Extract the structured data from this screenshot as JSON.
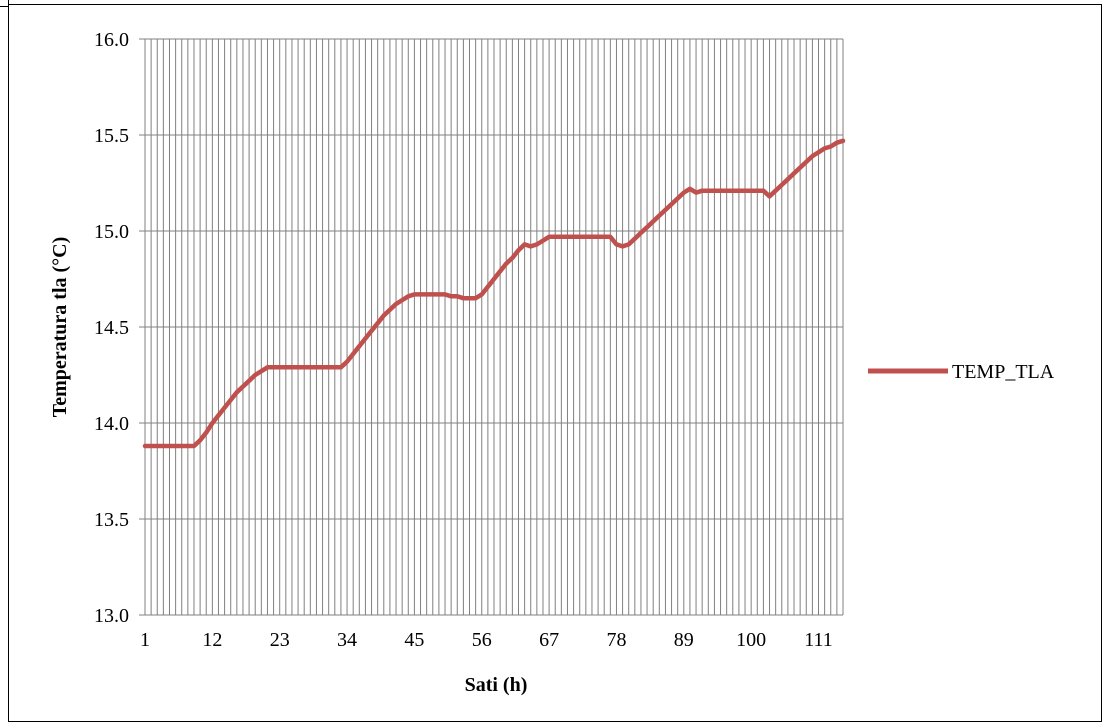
{
  "chart_data": {
    "type": "line",
    "title": "",
    "xlabel": "Sati (h)",
    "ylabel": "Temperatura tla (°C)",
    "ylim": [
      13.0,
      16.0
    ],
    "xlim": [
      1,
      115
    ],
    "y_ticks": [
      "13.0",
      "13.5",
      "14.0",
      "14.5",
      "15.0",
      "15.5",
      "16.0"
    ],
    "x_ticks": [
      "1",
      "12",
      "23",
      "34",
      "45",
      "56",
      "67",
      "78",
      "89",
      "100",
      "111"
    ],
    "grid": "vertical gridlines every hour, horizontal gridlines every 0.5",
    "legend_position": "right",
    "colors": {
      "series": "#C0504D",
      "grid": "#808080"
    },
    "series": [
      {
        "name": "TEMP_TLA",
        "x": [
          1,
          2,
          3,
          4,
          5,
          6,
          7,
          8,
          9,
          10,
          11,
          12,
          13,
          14,
          15,
          16,
          17,
          18,
          19,
          20,
          21,
          22,
          23,
          24,
          25,
          26,
          27,
          28,
          29,
          30,
          31,
          32,
          33,
          34,
          35,
          36,
          37,
          38,
          39,
          40,
          41,
          42,
          43,
          44,
          45,
          46,
          47,
          48,
          49,
          50,
          51,
          52,
          53,
          54,
          55,
          56,
          57,
          58,
          59,
          60,
          61,
          62,
          63,
          64,
          65,
          66,
          67,
          68,
          69,
          70,
          71,
          72,
          73,
          74,
          75,
          76,
          77,
          78,
          79,
          80,
          81,
          82,
          83,
          84,
          85,
          86,
          87,
          88,
          89,
          90,
          91,
          92,
          93,
          94,
          95,
          96,
          97,
          98,
          99,
          100,
          101,
          102,
          103,
          104,
          105,
          106,
          107,
          108,
          109,
          110,
          111,
          112,
          113,
          114,
          115
        ],
        "values": [
          13.88,
          13.88,
          13.88,
          13.88,
          13.88,
          13.88,
          13.88,
          13.88,
          13.88,
          13.91,
          13.95,
          14.0,
          14.04,
          14.08,
          14.12,
          14.16,
          14.19,
          14.22,
          14.25,
          14.27,
          14.29,
          14.29,
          14.29,
          14.29,
          14.29,
          14.29,
          14.29,
          14.29,
          14.29,
          14.29,
          14.29,
          14.29,
          14.29,
          14.32,
          14.36,
          14.4,
          14.44,
          14.48,
          14.52,
          14.56,
          14.59,
          14.62,
          14.64,
          14.66,
          14.67,
          14.67,
          14.67,
          14.67,
          14.67,
          14.67,
          14.66,
          14.66,
          14.65,
          14.65,
          14.65,
          14.67,
          14.71,
          14.75,
          14.79,
          14.83,
          14.86,
          14.9,
          14.93,
          14.92,
          14.93,
          14.95,
          14.97,
          14.97,
          14.97,
          14.97,
          14.97,
          14.97,
          14.97,
          14.97,
          14.97,
          14.97,
          14.97,
          14.93,
          14.92,
          14.93,
          14.96,
          14.99,
          15.02,
          15.05,
          15.08,
          15.11,
          15.14,
          15.17,
          15.2,
          15.22,
          15.2,
          15.21,
          15.21,
          15.21,
          15.21,
          15.21,
          15.21,
          15.21,
          15.21,
          15.21,
          15.21,
          15.21,
          15.18,
          15.21,
          15.24,
          15.27,
          15.3,
          15.33,
          15.36,
          15.39,
          15.41,
          15.43,
          15.44,
          15.46,
          15.47
        ]
      }
    ]
  }
}
